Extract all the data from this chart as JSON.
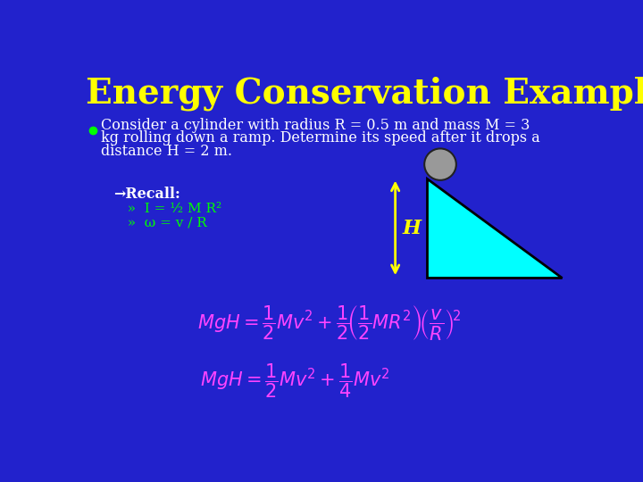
{
  "title": "Energy Conservation Example",
  "title_color": "#FFFF00",
  "title_fontsize": 28,
  "bg_color": "#2222CC",
  "bullet_text_line1": "Consider a cylinder with radius R = 0.5 m and mass M = 3",
  "bullet_text_line2": "kg rolling down a ramp. Determine its speed after it drops a",
  "bullet_text_line3": "distance H = 2 m.",
  "bullet_color": "#00FF00",
  "body_text_color": "#FFFFFF",
  "recall_label": "→Recall:",
  "recall_color": "#FFFFFF",
  "sub1": "  »  I = ½ M R²",
  "sub2": "  »  ω = v / R",
  "sub_color": "#00FF00",
  "H_label": "H",
  "H_color": "#FFFF00",
  "triangle_color": "#00FFFF",
  "triangle_edge_color": "#000000",
  "circle_color": "#999999",
  "circle_edge_color": "#222222",
  "formula1_color": "#FF44FF",
  "formula2_color": "#FF44FF",
  "arrow_color": "#FFFF00"
}
